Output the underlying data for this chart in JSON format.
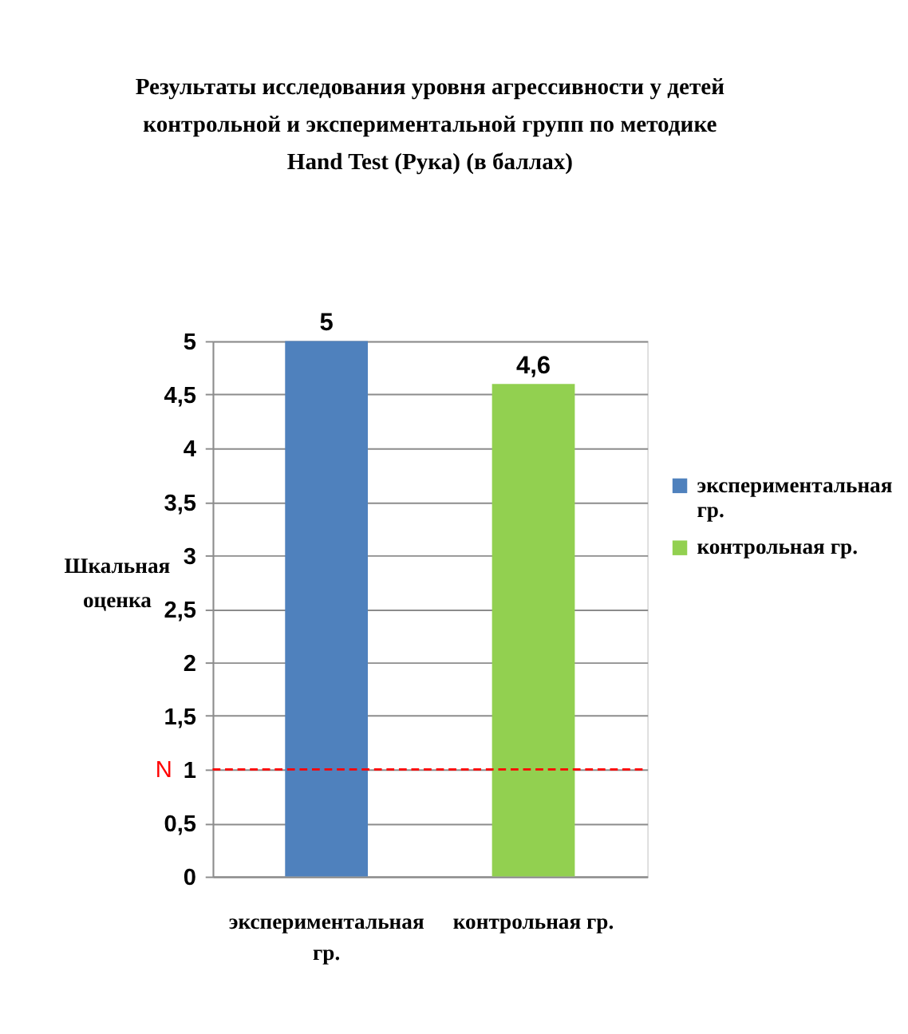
{
  "chart_data": {
    "type": "bar",
    "title": "Результаты исследования уровня агрессивности у детей контрольной и экспериментальной групп по методике Hand Test (Рука) (в баллах)",
    "ylabel": "Шкальная оценка",
    "categories": [
      "экспериментальная гр.",
      "контрольная гр."
    ],
    "stacked": true,
    "series": [
      {
        "name": "экспериментальная гр.",
        "color": "#4f81bd",
        "values": [
          5,
          null
        ],
        "value_labels": [
          "5",
          null
        ]
      },
      {
        "name": "контрольная гр.",
        "color": "#92d050",
        "values": [
          null,
          4.6
        ],
        "value_labels": [
          null,
          "4,6"
        ]
      }
    ],
    "ylim": [
      0,
      5
    ],
    "yticks": [
      0,
      {
        "value": 0.5,
        "label": "0,5"
      },
      1,
      {
        "value": 1.5,
        "label": "1,5"
      },
      2,
      {
        "value": 2.5,
        "label": "2,5"
      },
      3,
      {
        "value": 3.5,
        "label": "3,5"
      },
      4,
      {
        "value": 4.5,
        "label": "4,5"
      },
      5
    ],
    "grid": "y",
    "legend": "right",
    "ref_lines": [
      {
        "axis": "y",
        "value": 1,
        "label": "N",
        "color": "#ff0000",
        "line_style": "dashed"
      }
    ]
  }
}
